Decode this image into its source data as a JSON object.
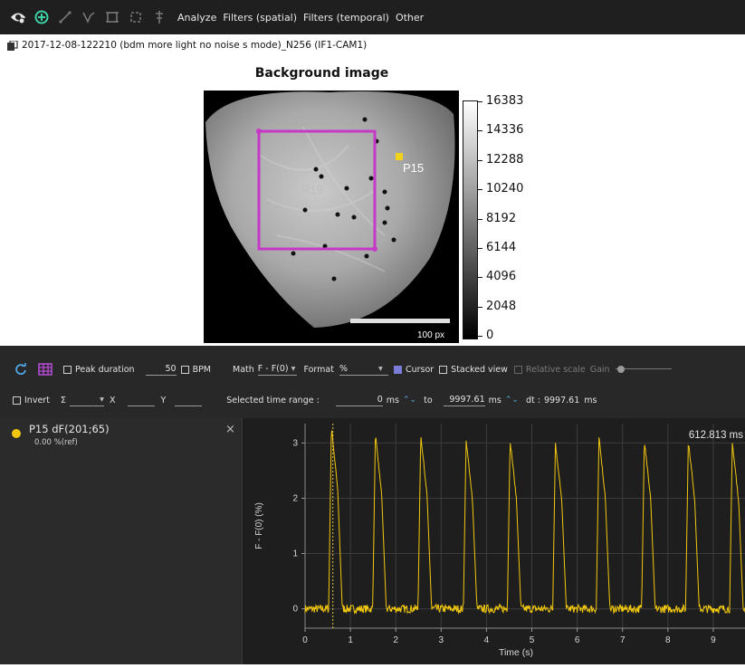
{
  "toolbar": {
    "menu": [
      "Analyze",
      "Filters (spatial)",
      "Filters (temporal)",
      "Other"
    ]
  },
  "file": {
    "title": "2017-12-08-122210 (bdm more light no noise s mode)_N256 (IF1-CAM1)"
  },
  "image_panel": {
    "title": "Background image",
    "roi_label": "R19",
    "point_label": "P15",
    "scale_label": "100 px",
    "colorbar_ticks": [
      "16383",
      "14336",
      "12288",
      "10240",
      "8192",
      "6144",
      "4096",
      "2048",
      "0"
    ]
  },
  "controls": {
    "peak_duration_label": "Peak duration",
    "peak_duration_value": "50",
    "bpm_label": "BPM",
    "math_label": "Math",
    "math_value": "F - F(0)",
    "format_label": "Format",
    "format_value": "%",
    "cursor_label": "Cursor",
    "cursor_checked": true,
    "stacked_label": "Stacked view",
    "relative_label": "Relative scale",
    "gain_label": "Gain",
    "invert_label": "Invert",
    "sigma_label": "Σ",
    "x_label": "X",
    "y_label": "Y",
    "time_range_label": "Selected time range :",
    "time_from": "0",
    "time_to": "9997.61",
    "unit_ms": "ms",
    "to_label": "to",
    "dt_label": "dt :",
    "dt_value": "9997.61",
    "dt_unit": "ms"
  },
  "trace_list": {
    "name": "P15 dF(201;65)",
    "sub": "0.00 %(ref)",
    "color": "#f2c80f"
  },
  "chart_data": {
    "type": "line",
    "xlabel": "Time (s)",
    "ylabel": "F - F(0) (%)",
    "xlim": [
      0,
      9.7
    ],
    "ylim": [
      -0.35,
      3.35
    ],
    "xticks": [
      "0",
      "1",
      "2",
      "3",
      "4",
      "5",
      "6",
      "7",
      "8",
      "9"
    ],
    "yticks": [
      "0",
      "1",
      "2",
      "3"
    ],
    "cursor_label": "612.813 ms",
    "cursor_x": 0.613,
    "peak_times": [
      0.58,
      1.55,
      2.55,
      3.55,
      4.52,
      5.52,
      6.48,
      7.48,
      8.45,
      9.42
    ],
    "peak_values": [
      3.3,
      3.15,
      3.15,
      3.05,
      3.05,
      3.0,
      3.1,
      3.05,
      3.05,
      3.0
    ],
    "baseline": 0.0,
    "noise": 0.15,
    "grid": true,
    "series_color": "#f2c80f"
  }
}
